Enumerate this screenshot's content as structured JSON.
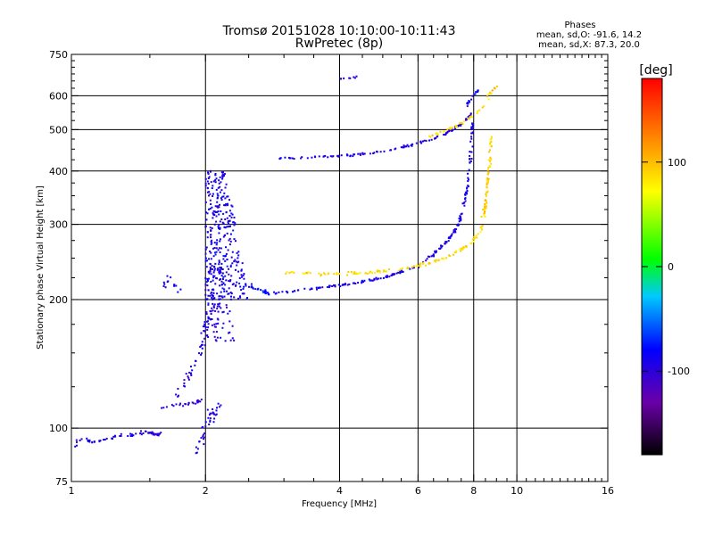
{
  "chart_data": {
    "type": "scatter",
    "title": "Tromsø 20151028 10:10:00-10:11:43",
    "subtitle": "RwPretec (8p)",
    "xlabel": "Frequency [MHz]",
    "ylabel": "Stationary phase Virtual Height [km]",
    "x_scale": "log",
    "y_scale": "log",
    "xlim": [
      1,
      16
    ],
    "ylim": [
      75,
      750
    ],
    "x_ticks": [
      1,
      2,
      4,
      6,
      8,
      10,
      16
    ],
    "x_tick_labels": [
      "1",
      "2",
      "4",
      "6",
      "8",
      "10",
      "16"
    ],
    "y_ticks": [
      75,
      100,
      200,
      300,
      400,
      500,
      600,
      750
    ],
    "y_tick_labels": [
      "75",
      "100",
      "200",
      "300",
      "400",
      "500",
      "600",
      "750"
    ],
    "grid": true,
    "phase_box": {
      "heading": "Phases",
      "line1": "mean, sd,O: -91.6, 14.2",
      "line2": "mean, sd,X:  87.3, 20.0"
    },
    "colorbar": {
      "label": "[deg]",
      "range": [
        -180,
        180
      ],
      "ticks": [
        100,
        0,
        -100
      ],
      "tick_labels": [
        "100",
        "0",
        "-100"
      ]
    },
    "series": [
      {
        "traces": [
          {
            "f": [
              1.0,
              1.05,
              1.12,
              1.2,
              1.3,
              1.4,
              1.5,
              1.55,
              1.58
            ],
            "h": [
              90,
              94,
              93,
              94,
              96,
              97,
              98,
              96,
              97
            ],
            "spread": 0.015,
            "n": 70,
            "phase": -95
          },
          {
            "f": [
              1.6,
              1.7,
              1.8,
              1.9,
              1.95
            ],
            "h": [
              112,
              113,
              114,
              115,
              116
            ],
            "spread": 0.012,
            "n": 25,
            "phase": -100
          },
          {
            "f": [
              1.75,
              1.85,
              1.95,
              2.0,
              2.05,
              2.08
            ],
            "h": [
              120,
              135,
              150,
              170,
              190,
              210
            ],
            "spread": 0.03,
            "n": 60,
            "phase": -95
          },
          {
            "f": [
              1.9,
              1.95,
              2.0,
              2.05,
              2.1,
              2.15
            ],
            "h": [
              88,
              92,
              98,
              105,
              110,
              115
            ],
            "spread": 0.04,
            "n": 40,
            "phase": -95
          },
          {
            "f": [
              1.6,
              1.65,
              1.7,
              1.73
            ],
            "h": [
              215,
              225,
              220,
              210
            ],
            "spread": 0.03,
            "n": 14,
            "phase": -95
          },
          {
            "f": [
              2.85,
              3.2,
              3.6,
              4.0,
              4.5,
              5.0,
              5.5,
              6.0,
              6.5,
              7.0,
              7.4
            ],
            "h": [
              207,
              210,
              213,
              216,
              220,
              225,
              232,
              240,
              255,
              275,
              300
            ],
            "spread": 0.01,
            "n": 150,
            "phase": -92
          },
          {
            "f": [
              7.4,
              7.6,
              7.75,
              7.85,
              7.92,
              7.96
            ],
            "h": [
              300,
              330,
              370,
              420,
              470,
              520
            ],
            "spread": 0.01,
            "n": 60,
            "phase": -90
          },
          {
            "f": [
              2.3,
              2.5,
              2.7,
              2.8
            ],
            "h": [
              220,
              215,
              210,
              207
            ],
            "spread": 0.02,
            "n": 30,
            "phase": -80
          },
          {
            "f": [
              2.9,
              3.3,
              3.8,
              4.3,
              4.8,
              5.3,
              5.8,
              6.3,
              6.8,
              7.2,
              7.6,
              7.9
            ],
            "h": [
              428,
              430,
              432,
              436,
              442,
              450,
              460,
              472,
              485,
              500,
              520,
              545
            ],
            "spread": 0.008,
            "n": 120,
            "phase": -93
          },
          {
            "f": [
              7.6,
              7.8,
              8.0,
              8.2
            ],
            "h": [
              560,
              580,
              600,
              620
            ],
            "spread": 0.01,
            "n": 20,
            "phase": -90
          },
          {
            "f": [
              4.0,
              4.2,
              4.4
            ],
            "h": [
              655,
              660,
              665
            ],
            "spread": 0.005,
            "n": 8,
            "phase": -95
          }
        ]
      },
      {
        "traces": [
          {
            "f": [
              3.0,
              3.5,
              4.0,
              4.5,
              5.0,
              5.5,
              6.0,
              6.5,
              7.0,
              7.5,
              8.0,
              8.3
            ],
            "h": [
              232,
              230,
              230,
              231,
              233,
              236,
              240,
              245,
              252,
              262,
              275,
              290
            ],
            "spread": 0.012,
            "n": 120,
            "phase": 88
          },
          {
            "f": [
              8.3,
              8.5,
              8.6,
              8.7,
              8.75
            ],
            "h": [
              290,
              330,
              380,
              430,
              480
            ],
            "spread": 0.012,
            "n": 70,
            "phase": 90
          },
          {
            "f": [
              6.3,
              6.8,
              7.3,
              7.8,
              8.3,
              8.7
            ],
            "h": [
              480,
              495,
              510,
              530,
              555,
              590
            ],
            "spread": 0.01,
            "n": 35,
            "phase": 85
          },
          {
            "f": [
              8.6,
              8.8,
              9.0
            ],
            "h": [
              600,
              615,
              630
            ],
            "spread": 0.01,
            "n": 10,
            "phase": 95
          }
        ]
      }
    ],
    "clusters": [
      {
        "f_range": [
          2.0,
          2.5
        ],
        "h_range": [
          200,
          400
        ],
        "n": 320,
        "phase": -90
      },
      {
        "f_range": [
          2.0,
          2.35
        ],
        "h_range": [
          160,
          240
        ],
        "n": 100,
        "phase": -95
      }
    ]
  }
}
